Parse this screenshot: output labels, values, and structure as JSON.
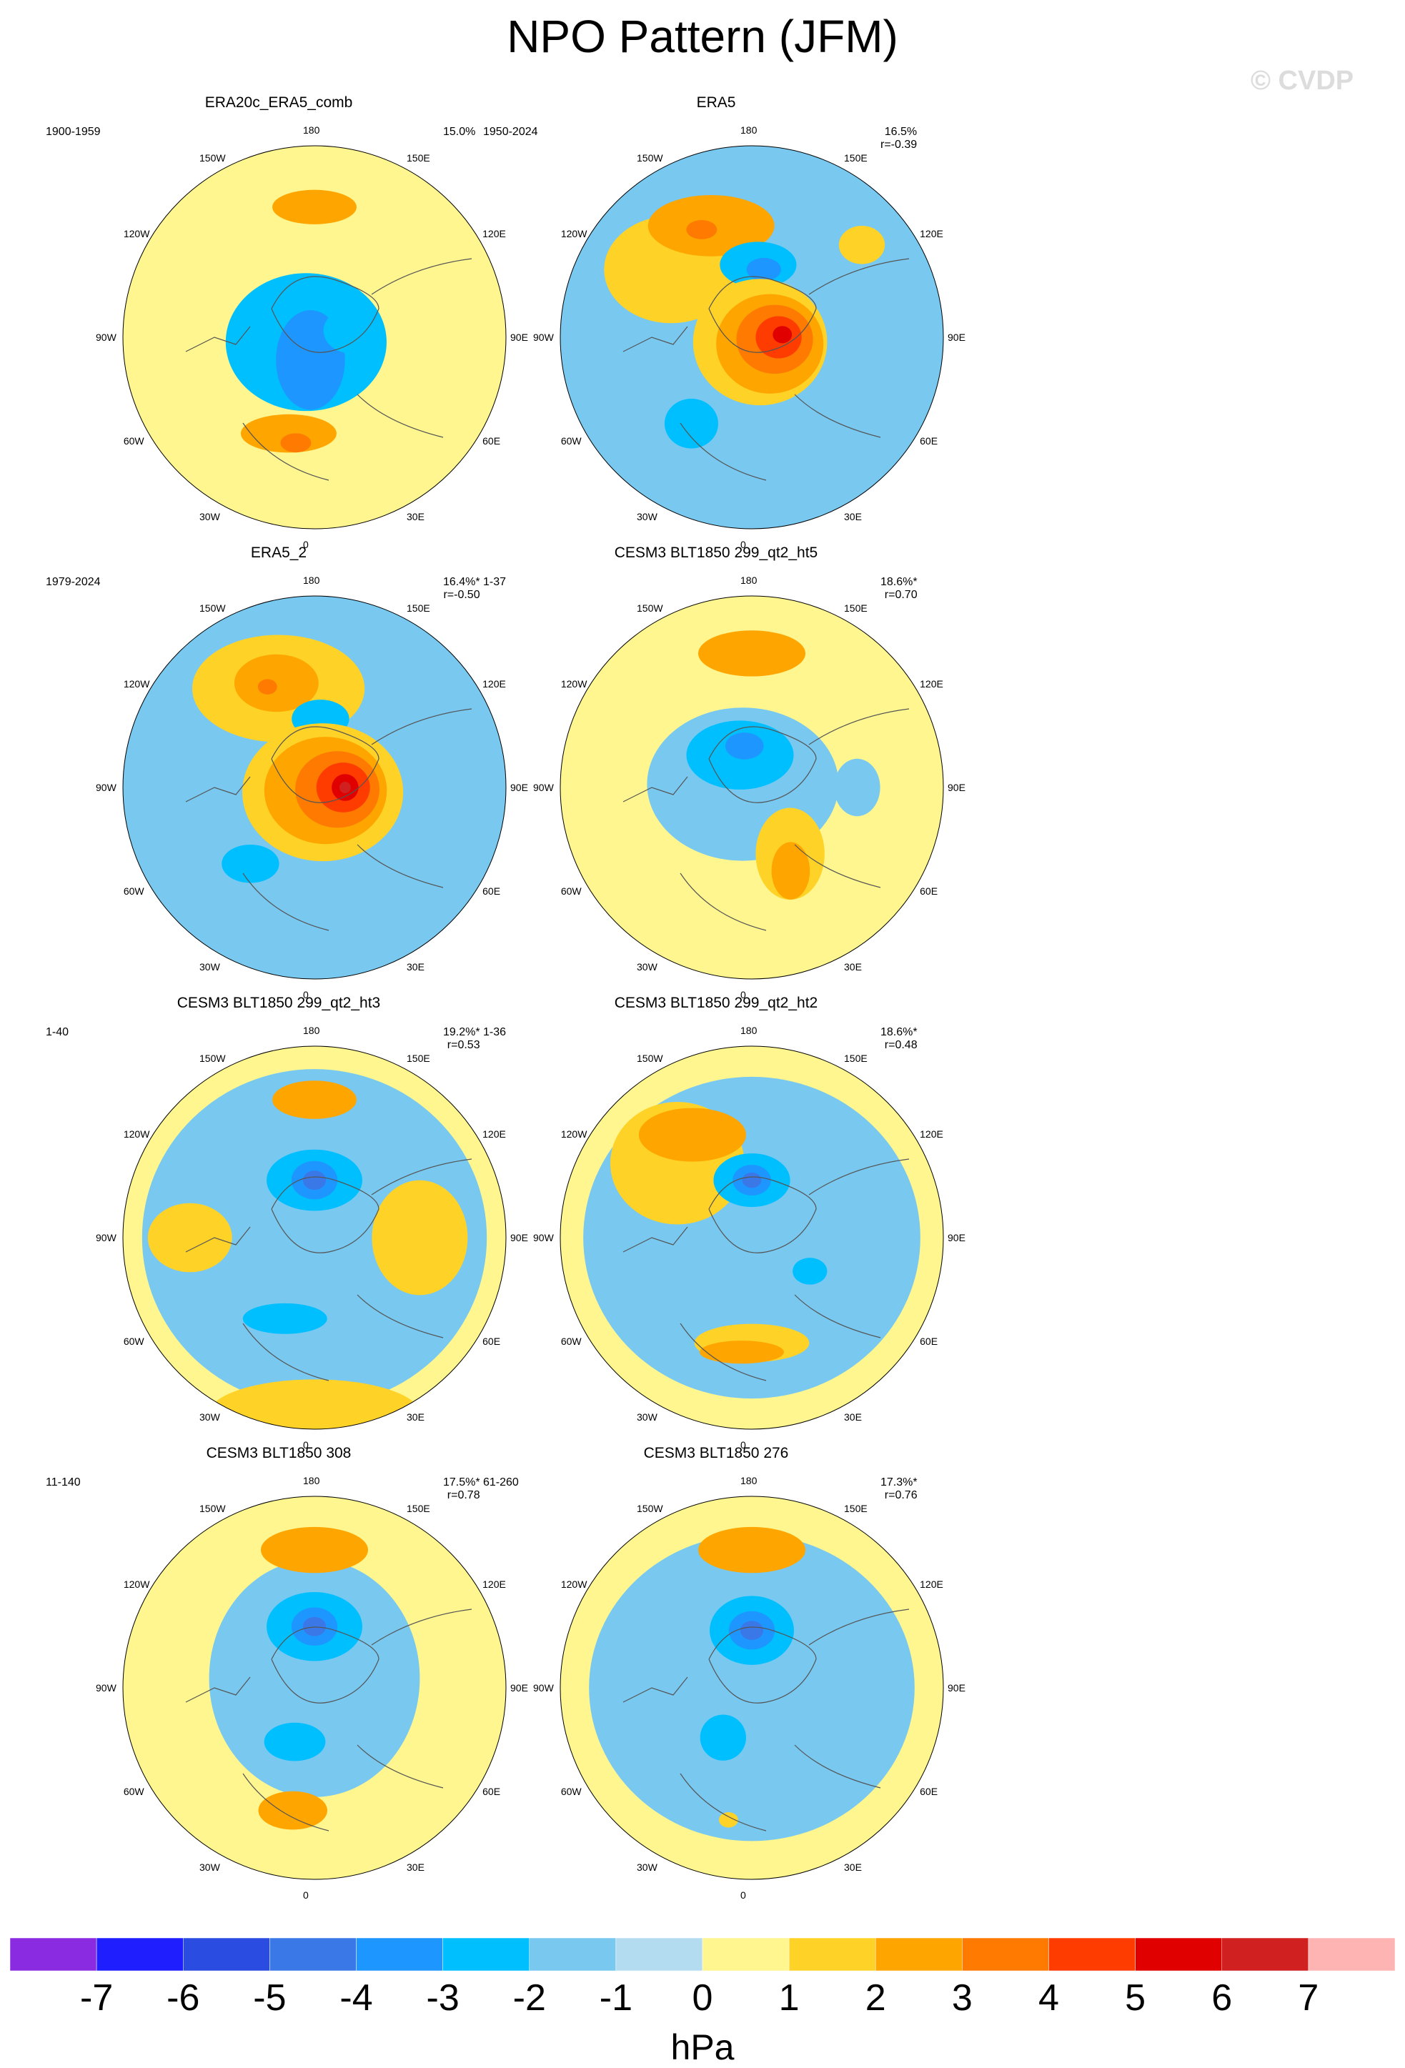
{
  "title": "NPO Pattern (JFM)",
  "watermark": "© CVDP",
  "colors": {
    "ocean_neutral": "#fff68f",
    "land_line": "#555555"
  },
  "chart_data": {
    "type": "heatmap",
    "projection": "north-polar-stereographic",
    "variable": "sea level pressure anomaly pattern",
    "units": "hPa",
    "contour_levels": [
      -7,
      -6,
      -5,
      -4,
      -3,
      -2,
      -1,
      0,
      1,
      2,
      3,
      4,
      5,
      6,
      7
    ],
    "colorbar_colors": [
      "#8a2be2",
      "#1e1eff",
      "#2b4ce0",
      "#3a78e8",
      "#1e96ff",
      "#00bfff",
      "#78c8f0",
      "#b4dcf0",
      "#fff68f",
      "#ffd228",
      "#ffa500",
      "#ff7a00",
      "#ff3c00",
      "#e00000",
      "#d02020",
      "#ffb4b4"
    ],
    "longitude_labels": [
      "180",
      "150E",
      "120E",
      "90E",
      "60E",
      "30E",
      "0",
      "30W",
      "60W",
      "90W",
      "120W",
      "150W"
    ],
    "panels": [
      {
        "title": "ERA20c_ERA5_comb",
        "period": "1900-1959",
        "pct": "15.0%",
        "r": "",
        "features": [
          {
            "value": -2,
            "lon": 300,
            "dist": 0.05,
            "rx": 0.42,
            "ry": 0.36
          },
          {
            "value": -3,
            "lon": 350,
            "dist": 0.12,
            "rx": 0.18,
            "ry": 0.26
          },
          {
            "value": -2,
            "lon": 100,
            "dist": 0.2,
            "rx": 0.15,
            "ry": 0.12
          },
          {
            "value": 2,
            "lon": 180,
            "dist": 0.68,
            "rx": 0.22,
            "ry": 0.09
          },
          {
            "value": 2,
            "lon": 345,
            "dist": 0.52,
            "rx": 0.25,
            "ry": 0.1
          },
          {
            "value": 3,
            "lon": 350,
            "dist": 0.56,
            "rx": 0.08,
            "ry": 0.05
          }
        ]
      },
      {
        "title": "ERA5",
        "period": "1950-2024",
        "pct": "16.5%",
        "r": "r=-0.39",
        "features": [
          {
            "value": -1,
            "lon": 0,
            "dist": 0.0,
            "rx": 1.0,
            "ry": 1.0
          },
          {
            "value": 1,
            "lon": 230,
            "dist": 0.55,
            "rx": 0.35,
            "ry": 0.28
          },
          {
            "value": 1,
            "lon": 130,
            "dist": 0.75,
            "rx": 0.12,
            "ry": 0.1
          },
          {
            "value": 2,
            "lon": 200,
            "dist": 0.62,
            "rx": 0.33,
            "ry": 0.16
          },
          {
            "value": 3,
            "lon": 205,
            "dist": 0.62,
            "rx": 0.08,
            "ry": 0.05
          },
          {
            "value": -2,
            "lon": 175,
            "dist": 0.38,
            "rx": 0.2,
            "ry": 0.12
          },
          {
            "value": -3,
            "lon": 170,
            "dist": 0.36,
            "rx": 0.09,
            "ry": 0.06
          },
          {
            "value": 1,
            "lon": 60,
            "dist": 0.05,
            "rx": 0.35,
            "ry": 0.33
          },
          {
            "value": 2,
            "lon": 70,
            "dist": 0.1,
            "rx": 0.28,
            "ry": 0.26
          },
          {
            "value": 3,
            "lon": 85,
            "dist": 0.12,
            "rx": 0.2,
            "ry": 0.18
          },
          {
            "value": 4,
            "lon": 90,
            "dist": 0.14,
            "rx": 0.12,
            "ry": 0.11
          },
          {
            "value": 5,
            "lon": 95,
            "dist": 0.16,
            "rx": 0.05,
            "ry": 0.045
          },
          {
            "value": -2,
            "lon": 325,
            "dist": 0.55,
            "rx": 0.14,
            "ry": 0.13
          }
        ]
      },
      {
        "title": "ERA5_2",
        "period": "1979-2024",
        "pct": "16.4%*",
        "r": "r=-0.50",
        "features": [
          {
            "value": -1,
            "lon": 0,
            "dist": 0.0,
            "rx": 1.0,
            "ry": 1.0
          },
          {
            "value": 1,
            "lon": 200,
            "dist": 0.55,
            "rx": 0.45,
            "ry": 0.28
          },
          {
            "value": 2,
            "lon": 200,
            "dist": 0.58,
            "rx": 0.22,
            "ry": 0.15
          },
          {
            "value": 3,
            "lon": 205,
            "dist": 0.58,
            "rx": 0.05,
            "ry": 0.04
          },
          {
            "value": -2,
            "lon": 175,
            "dist": 0.36,
            "rx": 0.15,
            "ry": 0.1
          },
          {
            "value": 1,
            "lon": 60,
            "dist": 0.05,
            "rx": 0.42,
            "ry": 0.36
          },
          {
            "value": 2,
            "lon": 75,
            "dist": 0.06,
            "rx": 0.32,
            "ry": 0.28
          },
          {
            "value": 3,
            "lon": 85,
            "dist": 0.12,
            "rx": 0.22,
            "ry": 0.2
          },
          {
            "value": 4,
            "lon": 90,
            "dist": 0.15,
            "rx": 0.14,
            "ry": 0.13
          },
          {
            "value": 5,
            "lon": 90,
            "dist": 0.16,
            "rx": 0.07,
            "ry": 0.07
          },
          {
            "value": 6,
            "lon": 90,
            "dist": 0.16,
            "rx": 0.03,
            "ry": 0.03
          },
          {
            "value": -2,
            "lon": 320,
            "dist": 0.52,
            "rx": 0.15,
            "ry": 0.1
          }
        ]
      },
      {
        "title": "CESM3 BLT1850 299_qt2_ht5",
        "period": "1-37",
        "pct": "18.6%*",
        "r": "r=0.70",
        "features": [
          {
            "value": -1,
            "lon": 250,
            "dist": 0.05,
            "rx": 0.5,
            "ry": 0.4
          },
          {
            "value": -2,
            "lon": 200,
            "dist": 0.18,
            "rx": 0.28,
            "ry": 0.18
          },
          {
            "value": -3,
            "lon": 190,
            "dist": 0.22,
            "rx": 0.1,
            "ry": 0.07
          },
          {
            "value": -1,
            "lon": 90,
            "dist": 0.55,
            "rx": 0.12,
            "ry": 0.15
          },
          {
            "value": 2,
            "lon": 180,
            "dist": 0.7,
            "rx": 0.28,
            "ry": 0.12
          },
          {
            "value": 1,
            "lon": 30,
            "dist": 0.4,
            "rx": 0.18,
            "ry": 0.24
          },
          {
            "value": 2,
            "lon": 25,
            "dist": 0.48,
            "rx": 0.1,
            "ry": 0.15
          }
        ]
      },
      {
        "title": "CESM3 BLT1850 299_qt2_ht3",
        "period": "1-40",
        "pct": "19.2%*",
        "r": "r=0.53",
        "features": [
          {
            "value": -1,
            "lon": 0,
            "dist": 0.0,
            "rx": 0.9,
            "ry": 0.88
          },
          {
            "value": 1,
            "lon": 90,
            "dist": 0.55,
            "rx": 0.25,
            "ry": 0.3
          },
          {
            "value": 1,
            "lon": 0,
            "dist": 0.92,
            "rx": 0.55,
            "ry": 0.18
          },
          {
            "value": 1,
            "lon": 270,
            "dist": 0.65,
            "rx": 0.22,
            "ry": 0.18
          },
          {
            "value": 2,
            "lon": 180,
            "dist": 0.72,
            "rx": 0.22,
            "ry": 0.1
          },
          {
            "value": -2,
            "lon": 180,
            "dist": 0.3,
            "rx": 0.25,
            "ry": 0.16
          },
          {
            "value": -3,
            "lon": 180,
            "dist": 0.3,
            "rx": 0.12,
            "ry": 0.1
          },
          {
            "value": -4,
            "lon": 180,
            "dist": 0.3,
            "rx": 0.06,
            "ry": 0.05
          },
          {
            "value": -2,
            "lon": 340,
            "dist": 0.45,
            "rx": 0.22,
            "ry": 0.08
          }
        ]
      },
      {
        "title": "CESM3 BLT1850 299_qt2_ht2",
        "period": "1-36",
        "pct": "18.6%*",
        "r": "r=0.48",
        "features": [
          {
            "value": -1,
            "lon": 0,
            "dist": 0.0,
            "rx": 0.88,
            "ry": 0.84
          },
          {
            "value": 1,
            "lon": 225,
            "dist": 0.55,
            "rx": 0.35,
            "ry": 0.32
          },
          {
            "value": 2,
            "lon": 210,
            "dist": 0.62,
            "rx": 0.28,
            "ry": 0.14
          },
          {
            "value": 1,
            "lon": 0,
            "dist": 0.55,
            "rx": 0.3,
            "ry": 0.1
          },
          {
            "value": 2,
            "lon": 355,
            "dist": 0.6,
            "rx": 0.22,
            "ry": 0.06
          },
          {
            "value": -2,
            "lon": 180,
            "dist": 0.3,
            "rx": 0.2,
            "ry": 0.14
          },
          {
            "value": -3,
            "lon": 180,
            "dist": 0.3,
            "rx": 0.1,
            "ry": 0.08
          },
          {
            "value": -4,
            "lon": 180,
            "dist": 0.3,
            "rx": 0.05,
            "ry": 0.04
          },
          {
            "value": -2,
            "lon": 60,
            "dist": 0.35,
            "rx": 0.09,
            "ry": 0.07
          }
        ]
      },
      {
        "title": "CESM3 BLT1850 308",
        "period": "11-140",
        "pct": "17.5%*",
        "r": "r=0.78",
        "features": [
          {
            "value": -1,
            "lon": 180,
            "dist": 0.05,
            "rx": 0.55,
            "ry": 0.62
          },
          {
            "value": 2,
            "lon": 180,
            "dist": 0.72,
            "rx": 0.28,
            "ry": 0.12
          },
          {
            "value": -2,
            "lon": 180,
            "dist": 0.32,
            "rx": 0.25,
            "ry": 0.18
          },
          {
            "value": -3,
            "lon": 180,
            "dist": 0.32,
            "rx": 0.12,
            "ry": 0.1
          },
          {
            "value": -4,
            "lon": 180,
            "dist": 0.32,
            "rx": 0.06,
            "ry": 0.05
          },
          {
            "value": -2,
            "lon": 340,
            "dist": 0.3,
            "rx": 0.16,
            "ry": 0.1
          },
          {
            "value": 2,
            "lon": 350,
            "dist": 0.65,
            "rx": 0.18,
            "ry": 0.1
          }
        ]
      },
      {
        "title": "CESM3 BLT1850 276",
        "period": "61-260",
        "pct": "17.3%*",
        "r": "r=0.76",
        "features": [
          {
            "value": -1,
            "lon": 0,
            "dist": 0.0,
            "rx": 0.85,
            "ry": 0.8
          },
          {
            "value": 2,
            "lon": 180,
            "dist": 0.72,
            "rx": 0.28,
            "ry": 0.12
          },
          {
            "value": -2,
            "lon": 180,
            "dist": 0.3,
            "rx": 0.22,
            "ry": 0.18
          },
          {
            "value": -3,
            "lon": 180,
            "dist": 0.3,
            "rx": 0.12,
            "ry": 0.1
          },
          {
            "value": -4,
            "lon": 180,
            "dist": 0.3,
            "rx": 0.06,
            "ry": 0.05
          },
          {
            "value": -2,
            "lon": 330,
            "dist": 0.3,
            "rx": 0.12,
            "ry": 0.12
          },
          {
            "value": 1,
            "lon": 350,
            "dist": 0.7,
            "rx": 0.05,
            "ry": 0.04
          }
        ]
      }
    ]
  }
}
